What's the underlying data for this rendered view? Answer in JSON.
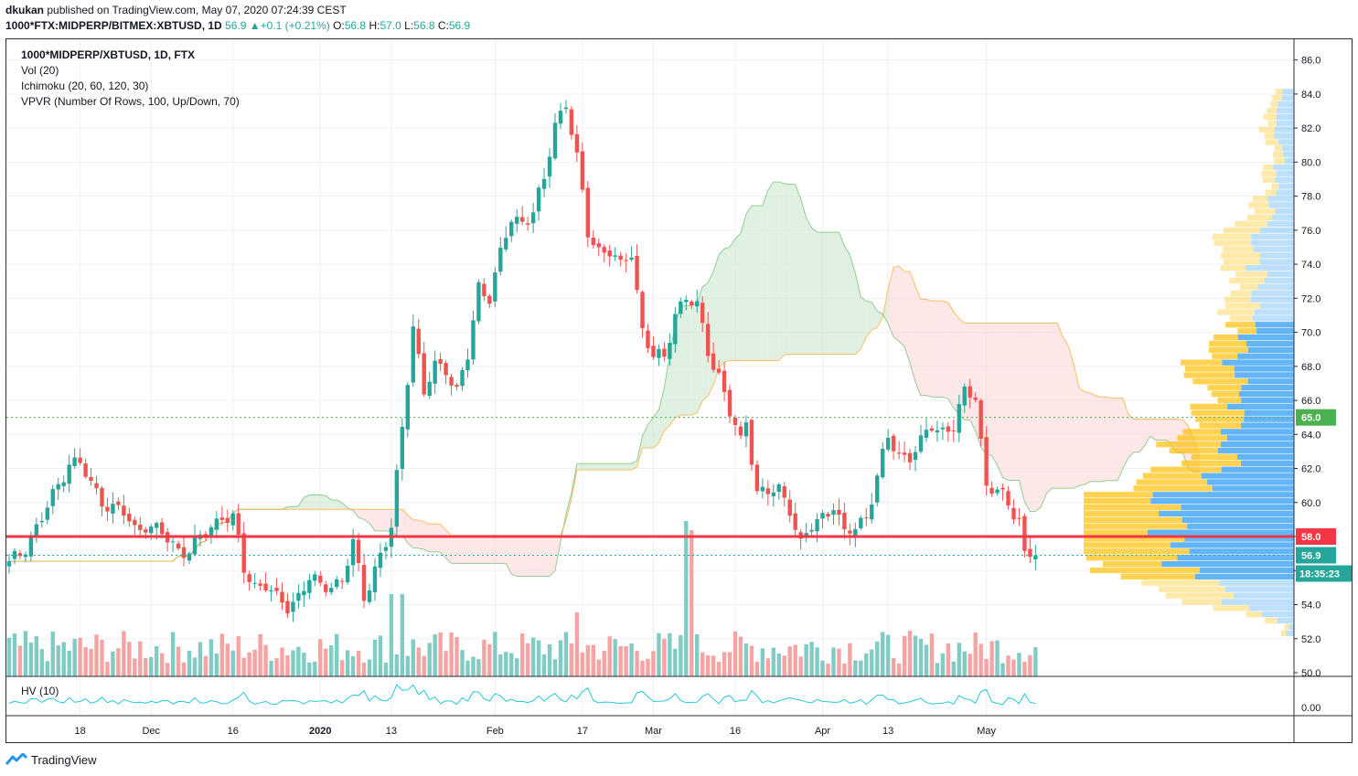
{
  "header": {
    "author": "dkukan",
    "published": " published on TradingView.com, May 07, 2020 07:24:39 CEST",
    "symbol": "1000*FTX:MIDPERP/BITMEX:XBTUSD, 1D",
    "price": "56.9",
    "arrow": "▲",
    "change": "+0.1 (+0.21%)",
    "o_label": "O:",
    "o_val": "56.8",
    "h_label": "H:",
    "h_val": "57.0",
    "l_label": "L:",
    "l_val": "56.8",
    "c_label": "C:",
    "c_val": "56.9"
  },
  "legend": {
    "title": "1000*MIDPERP/XBTUSD, 1D, FTX",
    "vol": "Vol (20)",
    "ichimoku": "Ichimoku (20, 60, 120, 30)",
    "vpvr": "VPVR (Number Of Rows, 100, Up/Down, 70)",
    "hv": "HV (10)"
  },
  "footer": {
    "brand": "TradingView"
  },
  "colors": {
    "up": "#26a69a",
    "down": "#ef5350",
    "vol_up": "#80cbc4",
    "vol_down": "#f5a3a3",
    "cloud_bull": "#c8e6c9",
    "cloud_bear": "#fbd3d3",
    "support_line": "#f23645",
    "dotted": "#4caf50",
    "vp_up": "#2196f3",
    "vp_down": "#ffc107",
    "hv": "#26c6da"
  },
  "chart_data": {
    "type": "candlestick",
    "title": "1000*MIDPERP/XBTUSD, 1D, FTX",
    "ylim": [
      50,
      87
    ],
    "yticks": [
      "50.0",
      "52.0",
      "54.0",
      "56.0",
      "58.0",
      "60.0",
      "62.0",
      "64.0",
      "66.0",
      "68.0",
      "70.0",
      "72.0",
      "74.0",
      "76.0",
      "78.0",
      "80.0",
      "82.0",
      "84.0",
      "86.0"
    ],
    "hv_ticks": [
      "0.00"
    ],
    "x_labels": [
      {
        "label": "18",
        "day": 13
      },
      {
        "label": "Dec",
        "day": 26
      },
      {
        "label": "16",
        "day": 41
      },
      {
        "label": "2020",
        "day": 57
      },
      {
        "label": "13",
        "day": 70
      },
      {
        "label": "Feb",
        "day": 89
      },
      {
        "label": "17",
        "day": 105
      },
      {
        "label": "Mar",
        "day": 118
      },
      {
        "label": "16",
        "day": 133
      },
      {
        "label": "Apr",
        "day": 149
      },
      {
        "label": "13",
        "day": 161
      },
      {
        "label": "May",
        "day": 179
      }
    ],
    "horizontal_lines": [
      {
        "name": "support",
        "value": 58.0,
        "label": "58.0",
        "style": "solid"
      },
      {
        "name": "level-65",
        "value": 65.0,
        "label": "65.0",
        "style": "dotted"
      },
      {
        "name": "last",
        "value": 56.9,
        "label": "56.9",
        "style": "dotted"
      }
    ],
    "countdown": "18:35:23",
    "anchors": [
      [
        0,
        56.3
      ],
      [
        2,
        57.0
      ],
      [
        4,
        58.0
      ],
      [
        6,
        59.0
      ],
      [
        9,
        61.0
      ],
      [
        11,
        62.5
      ],
      [
        13,
        62.2
      ],
      [
        15,
        61.0
      ],
      [
        17,
        60.2
      ],
      [
        19,
        59.7
      ],
      [
        21,
        59.3
      ],
      [
        23,
        58.4
      ],
      [
        25,
        58.8
      ],
      [
        27,
        58.3
      ],
      [
        29,
        57.8
      ],
      [
        31,
        57.3
      ],
      [
        33,
        57.2
      ],
      [
        35,
        57.8
      ],
      [
        37,
        58.6
      ],
      [
        39,
        59.3
      ],
      [
        41,
        59.0
      ],
      [
        42,
        57.6
      ],
      [
        43,
        56.0
      ],
      [
        45,
        55.2
      ],
      [
        47,
        55.2
      ],
      [
        49,
        54.2
      ],
      [
        51,
        53.9
      ],
      [
        53,
        54.6
      ],
      [
        55,
        55.5
      ],
      [
        57,
        55.0
      ],
      [
        59,
        55.3
      ],
      [
        61,
        55.4
      ],
      [
        63,
        57.5
      ],
      [
        65,
        54.5
      ],
      [
        67,
        56.2
      ],
      [
        69,
        57.5
      ],
      [
        70,
        58.4
      ],
      [
        72,
        64.5
      ],
      [
        74,
        70.5
      ],
      [
        76,
        66.3
      ],
      [
        78,
        68.0
      ],
      [
        80,
        68.0
      ],
      [
        82,
        66.5
      ],
      [
        84,
        68.5
      ],
      [
        86,
        72.7
      ],
      [
        88,
        72.2
      ],
      [
        90,
        74.5
      ],
      [
        92,
        76.6
      ],
      [
        94,
        76.6
      ],
      [
        96,
        77.1
      ],
      [
        98,
        78.8
      ],
      [
        100,
        82.3
      ],
      [
        102,
        83.6
      ],
      [
        104,
        80.1
      ],
      [
        106,
        75.8
      ],
      [
        108,
        74.9
      ],
      [
        110,
        74.8
      ],
      [
        112,
        73.7
      ],
      [
        114,
        74.8
      ],
      [
        116,
        70.2
      ],
      [
        118,
        68.5
      ],
      [
        120,
        68.4
      ],
      [
        122,
        71.3
      ],
      [
        124,
        72.0
      ],
      [
        126,
        71.4
      ],
      [
        128,
        69.0
      ],
      [
        130,
        67.5
      ],
      [
        132,
        65.2
      ],
      [
        134,
        63.5
      ],
      [
        135,
        64.9
      ],
      [
        137,
        60.7
      ],
      [
        139,
        60.5
      ],
      [
        141,
        60.7
      ],
      [
        143,
        59.8
      ],
      [
        145,
        57.5
      ],
      [
        147,
        58.5
      ],
      [
        149,
        59.2
      ],
      [
        151,
        60.0
      ],
      [
        153,
        58.0
      ],
      [
        155,
        58.5
      ],
      [
        157,
        59.3
      ],
      [
        159,
        61.5
      ],
      [
        161,
        63.7
      ],
      [
        163,
        62.8
      ],
      [
        165,
        62.8
      ],
      [
        167,
        63.4
      ],
      [
        169,
        64.5
      ],
      [
        171,
        64.3
      ],
      [
        173,
        64.5
      ],
      [
        175,
        66.3
      ],
      [
        177,
        66.4
      ],
      [
        179,
        61.0
      ],
      [
        181,
        60.6
      ],
      [
        183,
        59.8
      ],
      [
        185,
        59.2
      ],
      [
        186,
        57.0
      ],
      [
        188,
        56.9
      ]
    ],
    "volume_note": "Volume bars coloured by candle direction; volume spikes near Jan 13 and Mar 12.",
    "vpvr_note": "Volume profile concentrated between 56 and 70 with peak near 58.",
    "hv_note": "Historical volatility (10) line, small values near 0.00."
  }
}
